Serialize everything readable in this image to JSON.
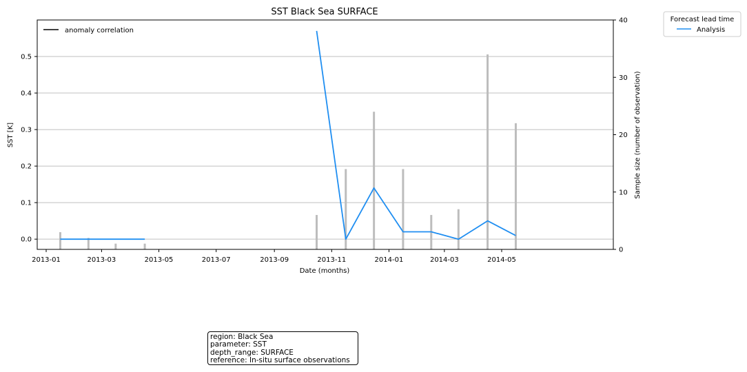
{
  "chart_data": {
    "type": "line",
    "title": "SST Black Sea SURFACE",
    "xlabel": "Date (months)",
    "ylabel": "SST [K]",
    "y2label": "Sample size (number of observation)",
    "x_ticks": [
      "2013-01",
      "2013-03",
      "2013-05",
      "2013-07",
      "2013-09",
      "2013-11",
      "2014-01",
      "2014-03",
      "2014-05"
    ],
    "y_ticks": [
      "0.0",
      "0.1",
      "0.2",
      "0.3",
      "0.4",
      "0.5"
    ],
    "y2_ticks": [
      "0",
      "10",
      "20",
      "30",
      "40"
    ],
    "ylim": [
      -0.028,
      0.6
    ],
    "y2lim": [
      0,
      40
    ],
    "grid": "horizontal",
    "series": [
      {
        "name": "Analysis",
        "color": "#1f8ef1",
        "segments": [
          [
            {
              "x": "2013-01-16",
              "y": 0.0
            },
            {
              "x": "2013-02-15",
              "y": 0.0
            },
            {
              "x": "2013-03-16",
              "y": 0.0
            },
            {
              "x": "2013-04-16",
              "y": 0.0
            }
          ],
          [
            {
              "x": "2013-10-16",
              "y": 0.57
            },
            {
              "x": "2013-11-16",
              "y": 0.0
            },
            {
              "x": "2013-12-16",
              "y": 0.14
            },
            {
              "x": "2014-01-16",
              "y": 0.02
            },
            {
              "x": "2014-02-15",
              "y": 0.02
            },
            {
              "x": "2014-03-16",
              "y": 0.0
            },
            {
              "x": "2014-04-16",
              "y": 0.05
            },
            {
              "x": "2014-05-16",
              "y": 0.01
            }
          ]
        ]
      }
    ],
    "sample_size": {
      "color": "#bdbdbd",
      "bars": [
        {
          "x": "2013-01-16",
          "value": 3
        },
        {
          "x": "2013-02-15",
          "value": 2
        },
        {
          "x": "2013-03-16",
          "value": 1
        },
        {
          "x": "2013-04-16",
          "value": 1
        },
        {
          "x": "2013-10-16",
          "value": 6
        },
        {
          "x": "2013-11-16",
          "value": 14
        },
        {
          "x": "2013-12-16",
          "value": 24
        },
        {
          "x": "2014-01-16",
          "value": 14
        },
        {
          "x": "2014-02-15",
          "value": 6
        },
        {
          "x": "2014-03-16",
          "value": 7
        },
        {
          "x": "2014-04-16",
          "value": 34
        },
        {
          "x": "2014-05-16",
          "value": 22
        }
      ]
    },
    "legend_main": {
      "label": "anomaly correlation",
      "color": "#000000",
      "position": "top-left"
    },
    "legend_lead": {
      "title": "Forecast lead time",
      "label": "Analysis",
      "position": "outside-top-right"
    }
  },
  "info_box": {
    "region": "region: Black Sea",
    "parameter": "parameter: SST",
    "depth_range": "depth_range: SURFACE",
    "reference": "reference: In-situ surface observations"
  }
}
